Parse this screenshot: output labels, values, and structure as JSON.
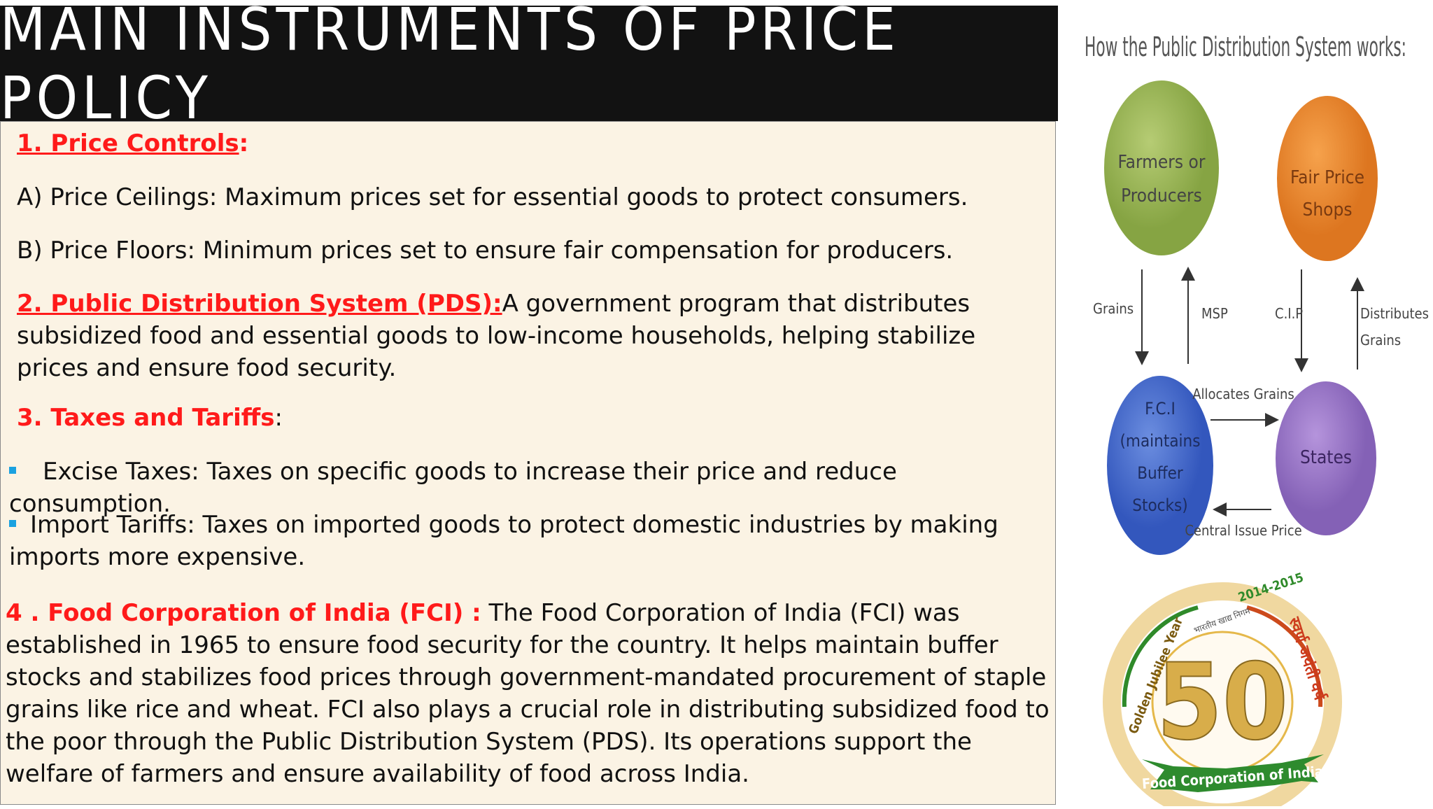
{
  "slide": {
    "title": "MAIN INSTRUMENTS OF PRICE POLICY",
    "price_controls": {
      "heading": "1. Price Controls",
      "colon": ":",
      "ceilings": "A)  Price Ceilings: Maximum prices set for essential goods to protect consumers.",
      "floors": "B) Price Floors: Minimum prices set to ensure fair compensation for producers."
    },
    "pds": {
      "heading": "2. Public Distribution System (PDS):",
      "text": "A government program that distributes subsidized food and essential goods to low-income households, helping stabilize prices and ensure food security."
    },
    "taxes": {
      "heading": "3. Taxes and Tariffs",
      "colon": ":",
      "excise": "Excise Taxes: Taxes on specific goods to increase their price and reduce consumption.",
      "import": "Import Tariffs: Taxes on imported goods to protect domestic industries by making imports more expensive."
    },
    "fci": {
      "heading": "4 .  Food Corporation of India (FCI) :",
      "text": " The Food Corporation of India (FCI) was established in 1965 to ensure food security for the country. It helps maintain buffer stocks and stabilizes food prices through government-mandated procurement of staple grains like rice and wheat. FCI also plays a crucial role in distributing subsidized food to the poor through the Public Distribution System (PDS). Its operations support the welfare of farmers and ensure availability of food across India."
    }
  },
  "diagram": {
    "title": "How the Public Distribution System works:",
    "nodes": {
      "farmers_line1": "Farmers or",
      "farmers_line2": "Producers",
      "fps_line1": "Fair Price",
      "fps_line2": "Shops",
      "fci_line1": "F.C.I",
      "fci_line2": "(maintains",
      "fci_line3": "Buffer",
      "fci_line4": "Stocks)",
      "states": "States"
    },
    "edges": {
      "grains": "Grains",
      "msp": "MSP",
      "cip": "C.I.P",
      "distributes_line1": "Distributes",
      "distributes_line2": "Grains",
      "allocates": "Allocates Grains",
      "central_issue": "Central Issue Price"
    },
    "colors": {
      "farmers": "#9ab554",
      "fps": "#ee8a2b",
      "fci": "#4a6fd0",
      "states": "#9a72c6"
    }
  },
  "logo": {
    "years": "2014-2015",
    "jubilee": "Golden Jubilee Year",
    "hindi_arc": "स्वर्ण जयंती वर्ष",
    "hindi_small": "भारतीय खाद्य निगम",
    "number": "50",
    "ribbon": "Food Corporation of India"
  }
}
